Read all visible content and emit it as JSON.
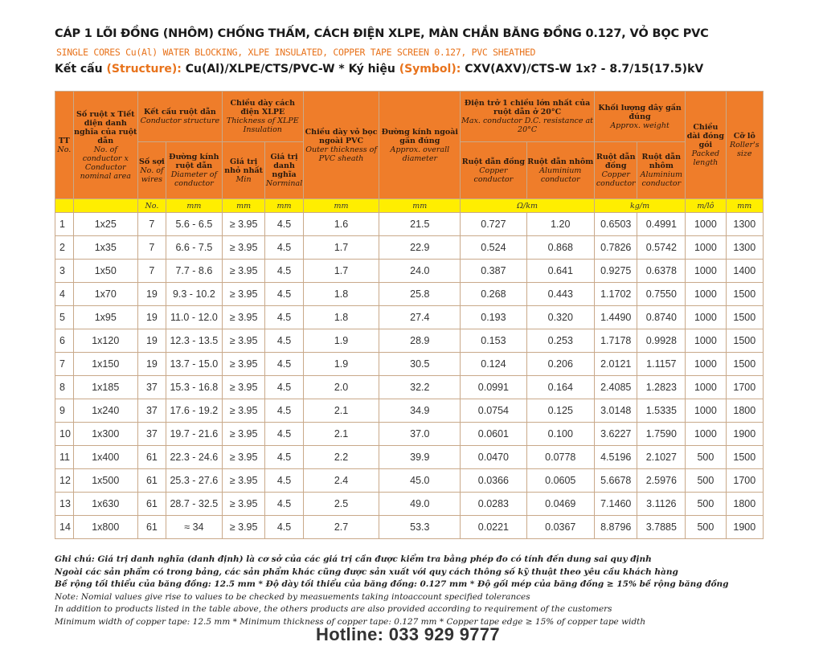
{
  "title": "CÁP 1 LÕI ĐỒNG (NHÔM) CHỐNG THẤM, CÁCH ĐIỆN XLPE, MÀN CHẮN BĂNG ĐỒNG 0.127, VỎ BỌC PVC",
  "subtitle": "SINGLE CORES Cu(Al) WATER BLOCKING, XLPE INSULATED, COPPER TAPE SCREEN 0.127,  PVC SHEATHED",
  "structure": {
    "label_vi": "Kết cấu ",
    "label_en": "(Structure):",
    "value": " Cu(Al)/XLPE/CTS/PVC-W  *  ",
    "symbol_vi": "Ký hiệu ",
    "symbol_en": "(Symbol):",
    "symbol_value": " CXV(AXV)/CTS-W 1x? - 8.7/15(17.5)kV"
  },
  "headers": {
    "tt_vi": "TT",
    "tt_en": "No.",
    "size_vi": "Số ruột x Tiết diện danh nghĩa của ruột dẫn",
    "size_en": "No. of conductor x Conductor nominal area",
    "conductor_vi": "Kết cấu ruột dẫn",
    "conductor_en": "Conductor structure",
    "wires_vi": "Số sợi",
    "wires_en": "No. of wires",
    "diameter_vi": "Đường kính ruột dẫn",
    "diameter_en": "Diameter of conductor",
    "xlpe_vi": "Chiều dày cách điện XLPE",
    "xlpe_en": "Thickness of XLPE Insulation",
    "xlpe_min_vi": "Giá trị nhỏ nhất",
    "xlpe_min_en": "Min",
    "xlpe_nom_vi": "Giá trị danh nghĩa",
    "xlpe_nom_en": "Norminal",
    "pvc_vi": "Chiều dày vỏ bọc ngoài PVC",
    "pvc_en": "Outer thickness of PVC sheath",
    "overall_vi": "Đường kính ngoài gần đúng",
    "overall_en": "Approx. overall diameter",
    "resistance_vi": "Điện trở 1 chiều lớn nhất của ruột dẫn ở 20°C",
    "resistance_en": "Max. conductor D.C. resistance at 20°C",
    "cu_vi": "Ruột dẫn đồng",
    "cu_en": "Copper conductor",
    "al_vi": "Ruột dẫn nhôm",
    "al_en": "Aluminium conductor",
    "weight_vi": "Khối lượng dây gần đúng",
    "weight_en": "Approx. weight",
    "packed_vi": "Chiều dài đóng gói",
    "packed_en": "Packed length",
    "roller_vi": "Cỡ lô",
    "roller_en": "Roller's size"
  },
  "units": [
    "No.",
    "mm",
    "mm",
    "mm",
    "mm",
    "mm",
    "Ω/km",
    "kg/m",
    "m/lô",
    "mm"
  ],
  "rows": [
    [
      "1",
      "1x25",
      "7",
      "5.6 - 6.5",
      "≥ 3.95",
      "4.5",
      "1.6",
      "21.5",
      "0.727",
      "1.20",
      "0.6503",
      "0.4991",
      "1000",
      "1300"
    ],
    [
      "2",
      "1x35",
      "7",
      "6.6 - 7.5",
      "≥ 3.95",
      "4.5",
      "1.7",
      "22.9",
      "0.524",
      "0.868",
      "0.7826",
      "0.5742",
      "1000",
      "1300"
    ],
    [
      "3",
      "1x50",
      "7",
      "7.7 - 8.6",
      "≥ 3.95",
      "4.5",
      "1.7",
      "24.0",
      "0.387",
      "0.641",
      "0.9275",
      "0.6378",
      "1000",
      "1400"
    ],
    [
      "4",
      "1x70",
      "19",
      "9.3 - 10.2",
      "≥ 3.95",
      "4.5",
      "1.8",
      "25.8",
      "0.268",
      "0.443",
      "1.1702",
      "0.7550",
      "1000",
      "1500"
    ],
    [
      "5",
      "1x95",
      "19",
      "11.0 - 12.0",
      "≥ 3.95",
      "4.5",
      "1.8",
      "27.4",
      "0.193",
      "0.320",
      "1.4490",
      "0.8740",
      "1000",
      "1500"
    ],
    [
      "6",
      "1x120",
      "19",
      "12.3 - 13.5",
      "≥ 3.95",
      "4.5",
      "1.9",
      "28.9",
      "0.153",
      "0.253",
      "1.7178",
      "0.9928",
      "1000",
      "1500"
    ],
    [
      "7",
      "1x150",
      "19",
      "13.7 - 15.0",
      "≥ 3.95",
      "4.5",
      "1.9",
      "30.5",
      "0.124",
      "0.206",
      "2.0121",
      "1.1157",
      "1000",
      "1500"
    ],
    [
      "8",
      "1x185",
      "37",
      "15.3 - 16.8",
      "≥ 3.95",
      "4.5",
      "2.0",
      "32.2",
      "0.0991",
      "0.164",
      "2.4085",
      "1.2823",
      "1000",
      "1700"
    ],
    [
      "9",
      "1x240",
      "37",
      "17.6 - 19.2",
      "≥ 3.95",
      "4.5",
      "2.1",
      "34.9",
      "0.0754",
      "0.125",
      "3.0148",
      "1.5335",
      "1000",
      "1800"
    ],
    [
      "10",
      "1x300",
      "37",
      "19.7 - 21.6",
      "≥ 3.95",
      "4.5",
      "2.1",
      "37.0",
      "0.0601",
      "0.100",
      "3.6227",
      "1.7590",
      "1000",
      "1900"
    ],
    [
      "11",
      "1x400",
      "61",
      "22.3 - 24.6",
      "≥ 3.95",
      "4.5",
      "2.2",
      "39.9",
      "0.0470",
      "0.0778",
      "4.5196",
      "2.1027",
      "500",
      "1500"
    ],
    [
      "12",
      "1x500",
      "61",
      "25.3 - 27.6",
      "≥ 3.95",
      "4.5",
      "2.4",
      "45.0",
      "0.0366",
      "0.0605",
      "5.6678",
      "2.5976",
      "500",
      "1700"
    ],
    [
      "13",
      "1x630",
      "61",
      "28.7 - 32.5",
      "≥ 3.95",
      "4.5",
      "2.5",
      "49.0",
      "0.0283",
      "0.0469",
      "7.1460",
      "3.1126",
      "500",
      "1800"
    ],
    [
      "14",
      "1x800",
      "61",
      "≈ 34",
      "≥ 3.95",
      "4.5",
      "2.7",
      "53.3",
      "0.0221",
      "0.0367",
      "8.8796",
      "3.7885",
      "500",
      "1900"
    ]
  ],
  "notes": [
    "Ghi chú: Giá trị danh nghĩa (danh định) là cơ sở của các giá trị cần được kiểm tra bằng phép đo có tính đến dung sai quy định",
    "Ngoài các sản phẩm có trong bảng, các sản phẩm khác cũng được sản xuất với quy cách thông số kỹ thuật theo yêu cầu khách hàng",
    "Bề rộng tối thiểu của băng đồng: 12.5 mm * Độ dày tối thiểu của băng đồng: 0.127 mm * Độ gối mép của băng đồng ≥ 15% bề rộng băng đồng",
    "Note: Nomial values give rise to values to be checked by measuements taking intoaccount specified tolerances",
    "In addition to products listed in the table above, the others products are also provided according to requirement of the customers",
    "Minimum width of copper tape: 12.5 mm * Minimum thickness of copper tape: 0.127 mm * Copper tape edge ≥ 15% of copper tape width"
  ],
  "hotline": "Hotline:   033 929 9777"
}
